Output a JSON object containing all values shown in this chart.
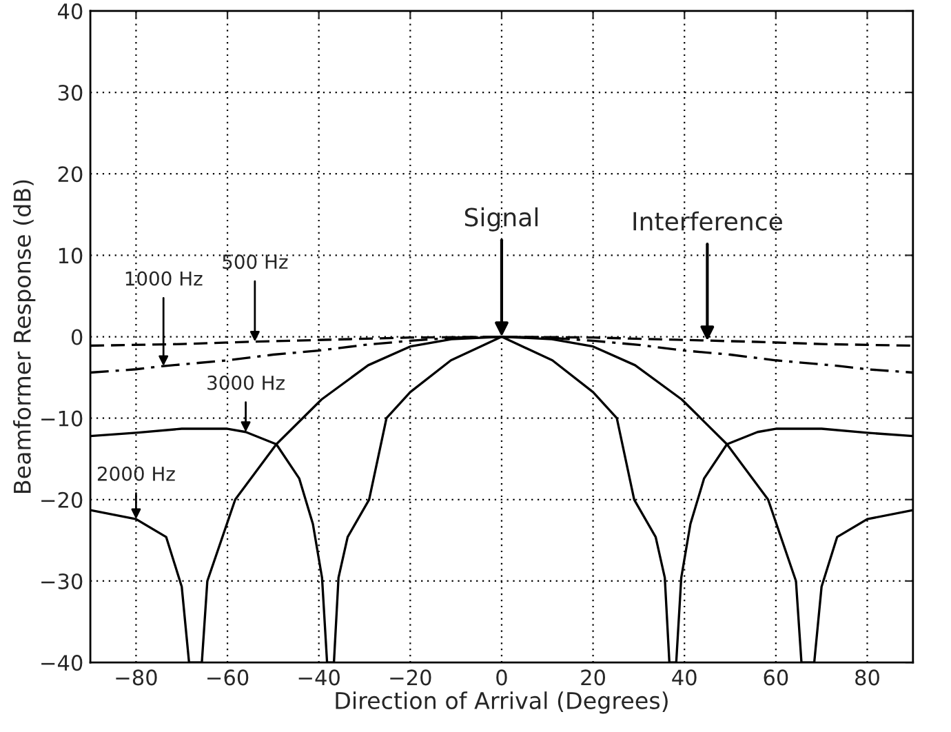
{
  "chart_data": {
    "type": "line",
    "xlabel": "Direction of Arrival (Degrees)",
    "ylabel": "Beamformer Response (dB)",
    "xlim": [
      -90,
      90
    ],
    "ylim": [
      -40,
      40
    ],
    "xticks": [
      -80,
      -60,
      -40,
      -20,
      0,
      20,
      40,
      60,
      80
    ],
    "yticks": [
      -40,
      -30,
      -20,
      -10,
      0,
      10,
      20,
      30,
      40
    ],
    "grid": true,
    "marker": "none",
    "series": [
      {
        "color": "#000000",
        "line_style": "dashed",
        "x": [
          -90,
          -70,
          -54,
          -40,
          -20,
          0,
          20,
          40,
          54,
          70,
          90
        ],
        "values": [
          -1.1,
          -0.9,
          -0.6,
          -0.4,
          -0.1,
          0,
          -0.1,
          -0.4,
          -0.6,
          -0.9,
          -1.1
        ]
      },
      {
        "color": "#000000",
        "line_style": "dashdot",
        "x": [
          -90,
          -80,
          -74,
          -60,
          -50,
          -40,
          -30,
          -20,
          -10,
          0,
          10,
          20,
          30,
          40,
          50,
          60,
          74,
          80,
          90
        ],
        "values": [
          -4.4,
          -4.0,
          -3.6,
          -2.9,
          -2.2,
          -1.7,
          -1.0,
          -0.5,
          -0.1,
          0,
          -0.1,
          -0.5,
          -1.0,
          -1.7,
          -2.2,
          -2.9,
          -3.6,
          -4.0,
          -4.4
        ]
      },
      {
        "color": "#000000",
        "line_style": "solid",
        "x": [
          -90,
          -80,
          -73.4,
          -70,
          -68.4,
          -65.6,
          -64.4,
          -58.3,
          -49.3,
          -39.4,
          -29.2,
          -20,
          -11,
          0,
          11,
          20,
          29.2,
          39.4,
          49.3,
          58.3,
          64.4,
          65.6,
          68.4,
          70,
          73.4,
          80,
          90
        ],
        "values": [
          -21.3,
          -22.4,
          -24.6,
          -30.7,
          -40,
          -40,
          -30,
          -20,
          -13.2,
          -7.7,
          -3.5,
          -1.2,
          -0.3,
          0,
          -0.3,
          -1.2,
          -3.5,
          -7.7,
          -13.2,
          -20,
          -30,
          -40,
          -40,
          -30.7,
          -24.6,
          -22.4,
          -21.3
        ]
      },
      {
        "color": "#000000",
        "line_style": "solid",
        "x": [
          -90,
          -80,
          -70,
          -60,
          -56,
          -49.3,
          -44.3,
          -41.3,
          -39.3,
          -38.2,
          -36.7,
          -35.7,
          -33.7,
          -29,
          -25.2,
          -20,
          -11.1,
          0,
          11.1,
          20,
          25.2,
          29,
          33.7,
          35.7,
          36.7,
          38.2,
          39.3,
          41.3,
          44.3,
          49.3,
          56,
          60,
          70,
          80,
          90
        ],
        "values": [
          -12.2,
          -11.8,
          -11.3,
          -11.3,
          -11.7,
          -13.2,
          -17.4,
          -23,
          -29.6,
          -40,
          -40,
          -29.6,
          -24.6,
          -20,
          -10,
          -6.8,
          -2.9,
          0,
          -2.9,
          -6.8,
          -10,
          -20,
          -24.6,
          -29.6,
          -40,
          -40,
          -29.6,
          -23,
          -17.4,
          -13.2,
          -11.7,
          -11.3,
          -11.3,
          -11.8,
          -12.2
        ]
      }
    ],
    "annotations": [
      {
        "text": "Signal",
        "x": 0,
        "y": 0
      },
      {
        "text": "Interference",
        "x": 45,
        "y": -0.5
      },
      {
        "text": "1000 Hz",
        "x": -74,
        "y": -3.6
      },
      {
        "text": "500 Hz",
        "x": -54,
        "y": -0.6
      },
      {
        "text": "3000 Hz",
        "x": -56,
        "y": -11.7
      },
      {
        "text": "2000 Hz",
        "x": -80,
        "y": -22.4
      }
    ]
  }
}
